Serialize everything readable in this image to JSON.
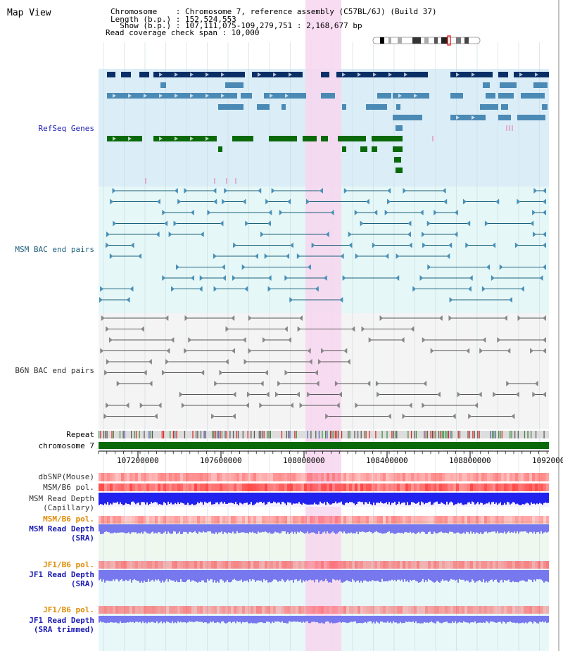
{
  "map_title": "Map View",
  "header": {
    "chromosome_line": "Chromosome    : Chromosome 7, reference assembly (C57BL/6J) (Build 37)",
    "length_line": "Length (b.p.) : 152,524,553",
    "show_line": "  Show (b.p.) : 107,111,075-109,279,751 : 2,168,677 bp",
    "coverage_line": "Read coverage check span : 10,000"
  },
  "tracks": {
    "refseq": "RefSeq Genes",
    "msm_bac": "MSM BAC end pairs",
    "b6n_bac": "B6N BAC end pairs",
    "repeat": "Repeat",
    "chromosome": "chromosome 7",
    "dbsnp": "dbSNP(Mouse)",
    "msm_b6_pol": "MSM/B6 pol.",
    "msm_depth_cap_1": "MSM Read Depth",
    "msm_depth_cap_2": "(Capillary)",
    "msm_b6_pol_2": "MSM/B6 pol.",
    "msm_depth_sra_1": "MSM Read Depth",
    "msm_depth_sra_2": "(SRA)",
    "jf1_b6_pol": "JF1/B6 pol.",
    "jf1_depth_sra_1": "JF1 Read Depth",
    "jf1_depth_sra_2": "(SRA)",
    "jf1_b6_pol_2": "JF1/B6 pol.",
    "jf1_depth_trim_1": "JF1 Read Depth",
    "jf1_depth_trim_2": "(SRA trimmed)"
  },
  "axis": {
    "ticks": [
      "107200000",
      "107600000",
      "108000000",
      "108400000",
      "108800000",
      "1092000"
    ]
  },
  "colors": {
    "refseq_bg": "#dbeef8",
    "msm_bg": "#e5f7f7",
    "b6n_bg": "#f4f4f4",
    "highlight": "#f7d6ef",
    "gene_dark": "#0a2e66",
    "gene_mid": "#4a8ab5",
    "gene_green": "#0a6a0a",
    "chromosome": "#0a6a0a",
    "pol_red": "#ff5555",
    "depth_blue": "#2222ee",
    "depth_light": "#7777ee",
    "label_blue": "#1b1bb3",
    "label_teal": "#1a5f7a",
    "label_orange": "#e08a00",
    "label_gray": "#333333"
  }
}
